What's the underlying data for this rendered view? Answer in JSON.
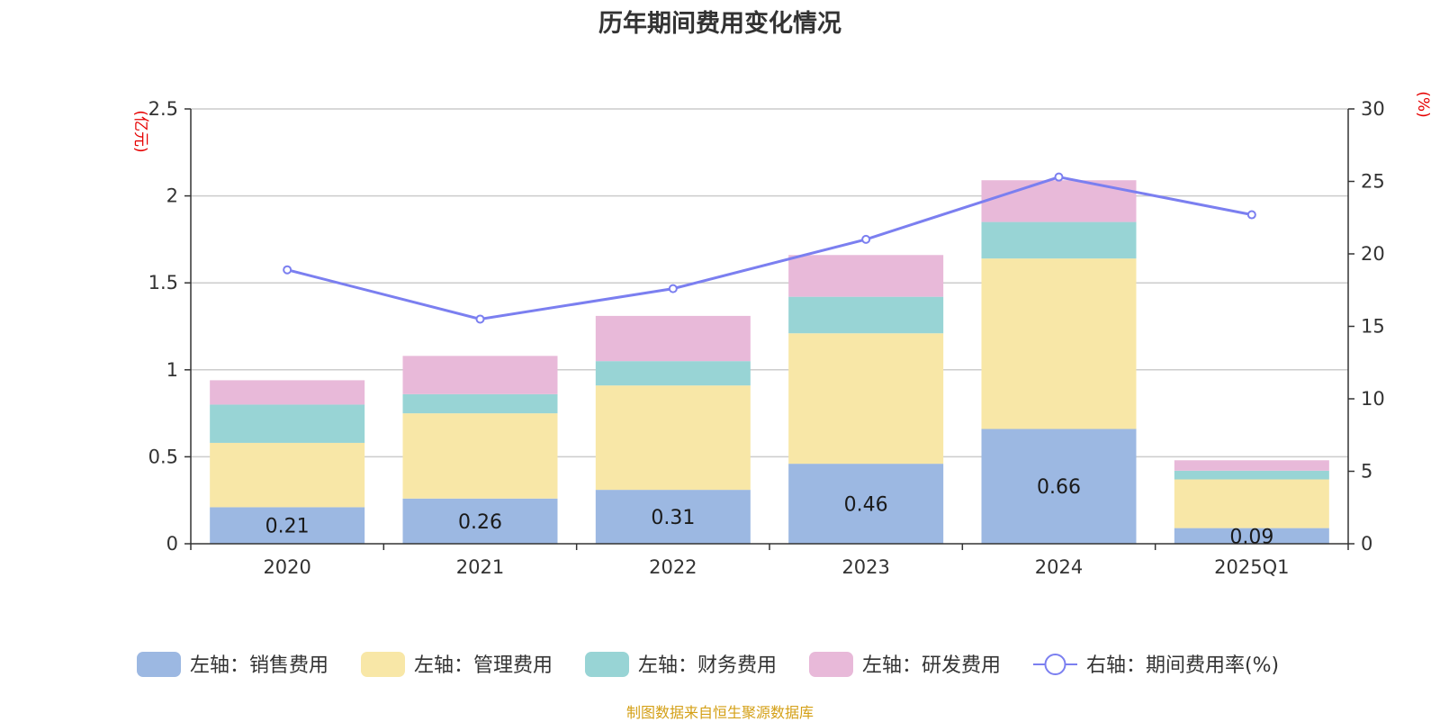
{
  "title": "历年期间费用变化情况",
  "source": "制图数据来自恒生聚源数据库",
  "chart_data": {
    "type": "bar",
    "stacked": true,
    "categories": [
      "2020",
      "2021",
      "2022",
      "2023",
      "2024",
      "2025Q1"
    ],
    "left_axis": {
      "unit": "(亿元)",
      "ylim": [
        0,
        2.5
      ],
      "ticks": [
        "0",
        "0.5",
        "1",
        "1.5",
        "2",
        "2.5"
      ]
    },
    "right_axis": {
      "unit": "(%)",
      "ylim": [
        0,
        30
      ],
      "ticks": [
        "0",
        "5",
        "10",
        "15",
        "20",
        "25",
        "30"
      ]
    },
    "grid": true,
    "legend_position": "bottom",
    "series": [
      {
        "name": "左轴：销售费用",
        "color": "#9cb8e2",
        "values": [
          0.21,
          0.26,
          0.31,
          0.46,
          0.66,
          0.09
        ],
        "labels": [
          "0.21",
          "0.26",
          "0.31",
          "0.46",
          "0.66",
          "0.09"
        ]
      },
      {
        "name": "左轴：管理费用",
        "color": "#f8e7a7",
        "values": [
          0.37,
          0.49,
          0.6,
          0.75,
          0.98,
          0.28
        ]
      },
      {
        "name": "左轴：财务费用",
        "color": "#98d4d5",
        "values": [
          0.22,
          0.11,
          0.14,
          0.21,
          0.21,
          0.05
        ]
      },
      {
        "name": "左轴：研发费用",
        "color": "#e8b9d9",
        "values": [
          0.14,
          0.22,
          0.26,
          0.24,
          0.24,
          0.06
        ]
      }
    ],
    "line": {
      "name": "右轴：期间费用率(%)",
      "color": "#7b7ff0",
      "values": [
        18.9,
        15.5,
        17.6,
        21.0,
        25.3,
        22.7
      ]
    }
  }
}
